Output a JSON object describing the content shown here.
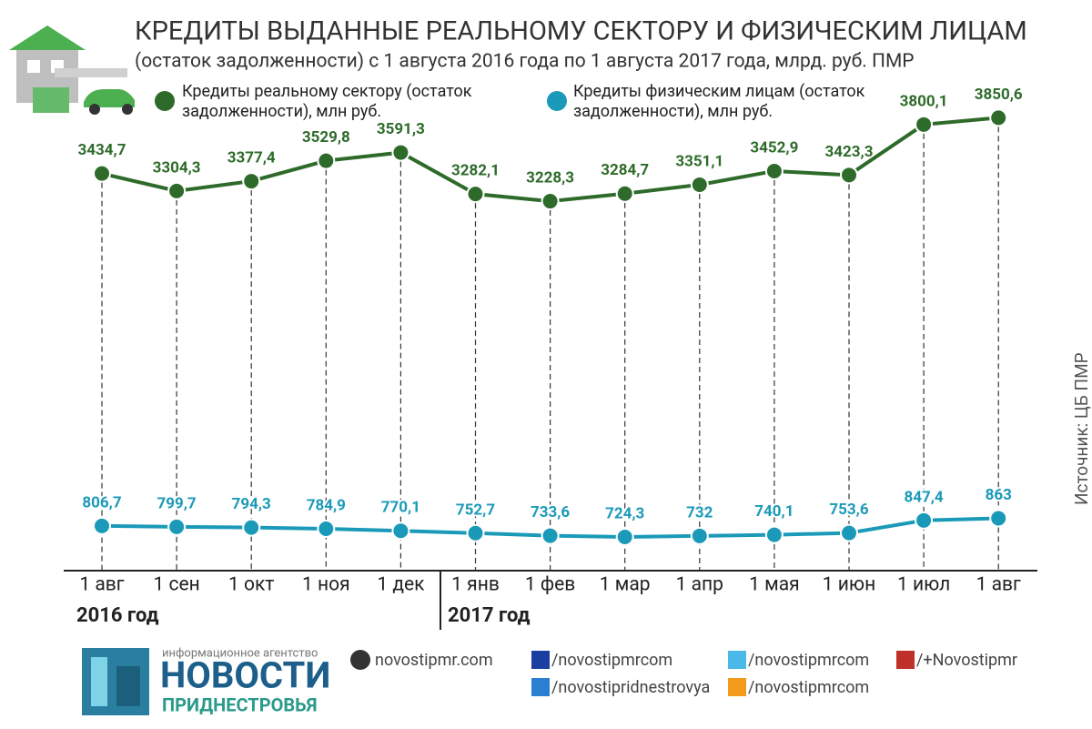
{
  "chart_data": {
    "type": "line",
    "title": "КРЕДИТЫ ВЫДАННЫЕ РЕАЛЬНОМУ СЕКТОРУ И ФИЗИЧЕСКИМ ЛИЦАМ",
    "subtitle": "(остаток задолженности) с 1 августа 2016 года по 1 августа 2017 года, млрд. руб. ПМР",
    "categories": [
      "1 авг",
      "1 сен",
      "1 окт",
      "1 ноя",
      "1 дек",
      "1 янв",
      "1 фев",
      "1 мар",
      "1 апр",
      "1 мая",
      "1 июн",
      "1 июл",
      "1 авг"
    ],
    "year_labels": [
      "2016 год",
      "2017 год"
    ],
    "series": [
      {
        "name": "Кредиты реальному сектору (остаток задолженности), млн руб.",
        "color": "#2e6b2a",
        "values": [
          3434.7,
          3304.3,
          3377.4,
          3529.8,
          3591.3,
          3282.1,
          3228.3,
          3284.7,
          3351.1,
          3452.9,
          3423.3,
          3800.1,
          3850.6
        ],
        "value_labels": [
          "3434,7",
          "3304,3",
          "3377,4",
          "3529,8",
          "3591,3",
          "3282,1",
          "3228,3",
          "3284,7",
          "3351,1",
          "3452,9",
          "3423,3",
          "3800,1",
          "3850,6"
        ]
      },
      {
        "name": "Кредиты физическим лицам (остаток задолженности), млн руб.",
        "color": "#1a9ab8",
        "values": [
          806.7,
          799.7,
          794.3,
          784.9,
          770.1,
          752.7,
          733.6,
          724.3,
          732,
          740.1,
          753.6,
          847.4,
          863
        ],
        "value_labels": [
          "806,7",
          "799,7",
          "794,3",
          "784,9",
          "770,1",
          "752,7",
          "733,6",
          "724,3",
          "732",
          "740,1",
          "753,6",
          "847,4",
          "863"
        ]
      }
    ],
    "ylim": [
      500,
      4050
    ],
    "source": "Источник: ЦБ ПМР"
  },
  "footer": {
    "agency": "информационное агентство",
    "brand": "НОВОСТИ",
    "brand_sub": "ПРИДНЕСТРОВЬЯ",
    "links": [
      "novostipmr.com",
      "/novostipmrcom",
      "/novostipridnestrovya",
      "/novostipmrcom",
      "/novostipmrcom",
      "/+Novostipmr"
    ]
  }
}
